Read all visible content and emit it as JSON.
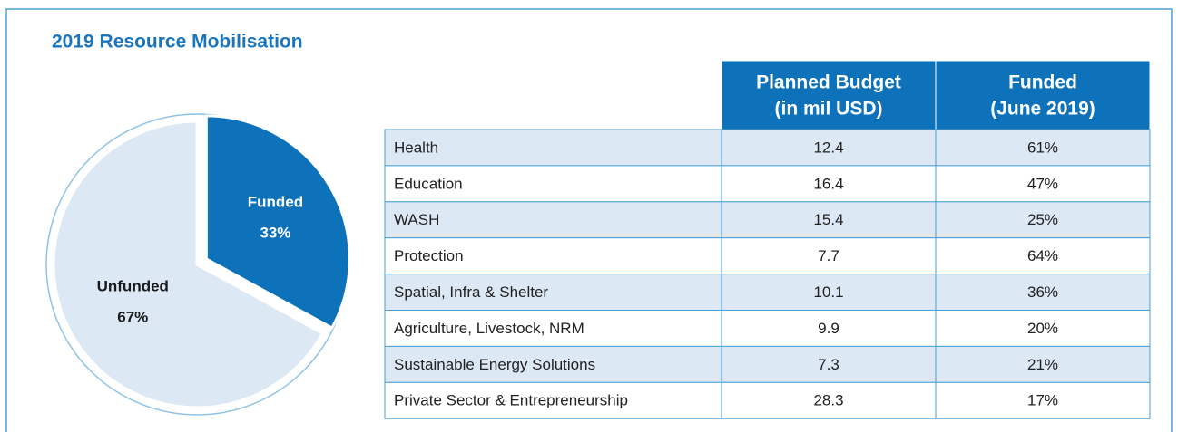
{
  "chart_data": {
    "type": "pie",
    "title": "2019 Resource Mobilisation",
    "categories": [
      "Funded",
      "Unfunded"
    ],
    "values": [
      33,
      67
    ],
    "value_labels": [
      "33%",
      "67%"
    ],
    "colors": [
      "#0d72b9",
      "#dce9f5"
    ],
    "label_colors": [
      "#ffffff",
      "#1a1a1a"
    ]
  },
  "table": {
    "columns": [
      [
        "Planned Budget",
        "(in mil USD)"
      ],
      [
        "Funded",
        "(June 2019)"
      ]
    ],
    "rows": [
      [
        "Health",
        "12.4",
        "61%"
      ],
      [
        "Education",
        "16.4",
        "47%"
      ],
      [
        "WASH",
        "15.4",
        "25%"
      ],
      [
        "Protection",
        "7.7",
        "64%"
      ],
      [
        "Spatial, Infra & Shelter",
        "10.1",
        "36%"
      ],
      [
        "Agriculture, Livestock, NRM",
        "9.9",
        "20%"
      ],
      [
        "Sustainable Energy Solutions",
        "7.3",
        "21%"
      ],
      [
        "Private Sector & Entrepreneurship",
        "28.3",
        "17%"
      ]
    ]
  }
}
